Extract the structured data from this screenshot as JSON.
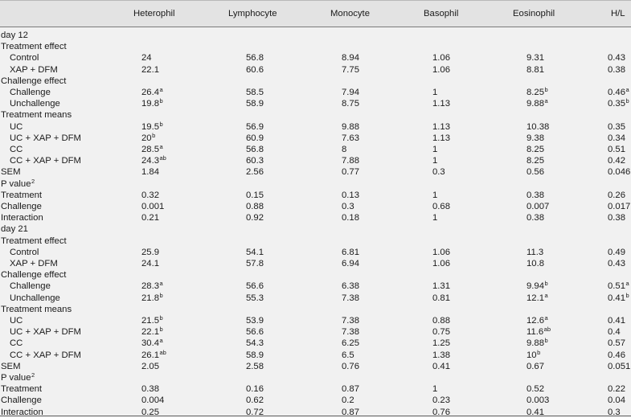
{
  "header": {
    "columns": [
      "Heterophil",
      "Lymphocyte",
      "Monocyte",
      "Basophil",
      "Eosinophil",
      "H/L"
    ]
  },
  "rows": [
    {
      "label": "day 12",
      "indent": false,
      "values": [
        null,
        null,
        null,
        null,
        null,
        null
      ]
    },
    {
      "label": "Treatment effect",
      "indent": false,
      "values": [
        null,
        null,
        null,
        null,
        null,
        null
      ]
    },
    {
      "label": "Control",
      "indent": true,
      "values": [
        {
          "v": "24"
        },
        {
          "v": "56.8"
        },
        {
          "v": "8.94"
        },
        {
          "v": "1.06"
        },
        {
          "v": "9.31"
        },
        {
          "v": "0.43"
        }
      ]
    },
    {
      "label": "XAP + DFM",
      "indent": true,
      "values": [
        {
          "v": "22.1"
        },
        {
          "v": "60.6"
        },
        {
          "v": "7.75"
        },
        {
          "v": "1.06"
        },
        {
          "v": "8.81"
        },
        {
          "v": "0.38"
        }
      ]
    },
    {
      "label": "Challenge effect",
      "indent": false,
      "values": [
        null,
        null,
        null,
        null,
        null,
        null
      ]
    },
    {
      "label": "Challenge",
      "indent": true,
      "values": [
        {
          "v": "26.4",
          "s": "a"
        },
        {
          "v": "58.5"
        },
        {
          "v": "7.94"
        },
        {
          "v": "1"
        },
        {
          "v": "8.25",
          "s": "b"
        },
        {
          "v": "0.46",
          "s": "a"
        }
      ]
    },
    {
      "label": "Unchallenge",
      "indent": true,
      "values": [
        {
          "v": "19.8",
          "s": "b"
        },
        {
          "v": "58.9"
        },
        {
          "v": "8.75"
        },
        {
          "v": "1.13"
        },
        {
          "v": "9.88",
          "s": "a"
        },
        {
          "v": "0.35",
          "s": "b"
        }
      ]
    },
    {
      "label": "Treatment means",
      "indent": false,
      "values": [
        null,
        null,
        null,
        null,
        null,
        null
      ]
    },
    {
      "label": "UC",
      "indent": true,
      "values": [
        {
          "v": "19.5",
          "s": "b"
        },
        {
          "v": "56.9"
        },
        {
          "v": "9.88"
        },
        {
          "v": "1.13"
        },
        {
          "v": "10.38"
        },
        {
          "v": "0.35"
        }
      ]
    },
    {
      "label": "UC + XAP + DFM",
      "indent": true,
      "values": [
        {
          "v": "20",
          "s": "b"
        },
        {
          "v": "60.9"
        },
        {
          "v": "7.63"
        },
        {
          "v": "1.13"
        },
        {
          "v": "9.38"
        },
        {
          "v": "0.34"
        }
      ]
    },
    {
      "label": "CC",
      "indent": true,
      "values": [
        {
          "v": "28.5",
          "s": "a"
        },
        {
          "v": "56.8"
        },
        {
          "v": "8"
        },
        {
          "v": "1"
        },
        {
          "v": "8.25"
        },
        {
          "v": "0.51"
        }
      ]
    },
    {
      "label": "CC + XAP + DFM",
      "indent": true,
      "values": [
        {
          "v": "24.3",
          "s": "ab"
        },
        {
          "v": "60.3"
        },
        {
          "v": "7.88"
        },
        {
          "v": "1"
        },
        {
          "v": "8.25"
        },
        {
          "v": "0.42"
        }
      ]
    },
    {
      "label": "SEM",
      "indent": false,
      "values": [
        {
          "v": "1.84"
        },
        {
          "v": "2.56"
        },
        {
          "v": "0.77"
        },
        {
          "v": "0.3"
        },
        {
          "v": "0.56"
        },
        {
          "v": "0.046"
        }
      ]
    },
    {
      "label": "P value",
      "label_sup": "2",
      "indent": false,
      "values": [
        null,
        null,
        null,
        null,
        null,
        null
      ]
    },
    {
      "label": "Treatment",
      "indent": false,
      "values": [
        {
          "v": "0.32"
        },
        {
          "v": "0.15"
        },
        {
          "v": "0.13"
        },
        {
          "v": "1"
        },
        {
          "v": "0.38"
        },
        {
          "v": "0.26"
        }
      ]
    },
    {
      "label": "Challenge",
      "indent": false,
      "values": [
        {
          "v": "0.001"
        },
        {
          "v": "0.88"
        },
        {
          "v": "0.3"
        },
        {
          "v": "0.68"
        },
        {
          "v": "0.007"
        },
        {
          "v": "0.017"
        }
      ]
    },
    {
      "label": "Interaction",
      "indent": false,
      "values": [
        {
          "v": "0.21"
        },
        {
          "v": "0.92"
        },
        {
          "v": "0.18"
        },
        {
          "v": "1"
        },
        {
          "v": "0.38"
        },
        {
          "v": "0.38"
        }
      ]
    },
    {
      "label": "day 21",
      "indent": false,
      "values": [
        null,
        null,
        null,
        null,
        null,
        null
      ]
    },
    {
      "label": "Treatment effect",
      "indent": false,
      "values": [
        null,
        null,
        null,
        null,
        null,
        null
      ]
    },
    {
      "label": "Control",
      "indent": true,
      "values": [
        {
          "v": "25.9"
        },
        {
          "v": "54.1"
        },
        {
          "v": "6.81"
        },
        {
          "v": "1.06"
        },
        {
          "v": "11.3"
        },
        {
          "v": "0.49"
        }
      ]
    },
    {
      "label": "XAP + DFM",
      "indent": true,
      "values": [
        {
          "v": "24.1"
        },
        {
          "v": "57.8"
        },
        {
          "v": "6.94"
        },
        {
          "v": "1.06"
        },
        {
          "v": "10.8"
        },
        {
          "v": "0.43"
        }
      ]
    },
    {
      "label": "Challenge effect",
      "indent": false,
      "values": [
        null,
        null,
        null,
        null,
        null,
        null
      ]
    },
    {
      "label": "Challenge",
      "indent": true,
      "values": [
        {
          "v": "28.3",
          "s": "a"
        },
        {
          "v": "56.6"
        },
        {
          "v": "6.38"
        },
        {
          "v": "1.31"
        },
        {
          "v": "9.94",
          "s": "b"
        },
        {
          "v": "0.51",
          "s": "a"
        }
      ]
    },
    {
      "label": "Unchallenge",
      "indent": true,
      "values": [
        {
          "v": "21.8",
          "s": "b"
        },
        {
          "v": "55.3"
        },
        {
          "v": "7.38"
        },
        {
          "v": "0.81"
        },
        {
          "v": "12.1",
          "s": "a"
        },
        {
          "v": "0.41",
          "s": "b"
        }
      ]
    },
    {
      "label": "Treatment means",
      "indent": false,
      "values": [
        null,
        null,
        null,
        null,
        null,
        null
      ]
    },
    {
      "label": "UC",
      "indent": true,
      "values": [
        {
          "v": "21.5",
          "s": "b"
        },
        {
          "v": "53.9"
        },
        {
          "v": "7.38"
        },
        {
          "v": "0.88"
        },
        {
          "v": "12.6",
          "s": "a"
        },
        {
          "v": "0.41"
        }
      ]
    },
    {
      "label": "UC + XAP + DFM",
      "indent": true,
      "values": [
        {
          "v": "22.1",
          "s": "b"
        },
        {
          "v": "56.6"
        },
        {
          "v": "7.38"
        },
        {
          "v": "0.75"
        },
        {
          "v": "11.6",
          "s": "ab"
        },
        {
          "v": "0.4"
        }
      ]
    },
    {
      "label": "CC",
      "indent": true,
      "values": [
        {
          "v": "30.4",
          "s": "a"
        },
        {
          "v": "54.3"
        },
        {
          "v": "6.25"
        },
        {
          "v": "1.25"
        },
        {
          "v": "9.88",
          "s": "b"
        },
        {
          "v": "0.57"
        }
      ]
    },
    {
      "label": "CC + XAP + DFM",
      "indent": true,
      "values": [
        {
          "v": "26.1",
          "s": "ab"
        },
        {
          "v": "58.9"
        },
        {
          "v": "6.5"
        },
        {
          "v": "1.38"
        },
        {
          "v": "10",
          "s": "b"
        },
        {
          "v": "0.46"
        }
      ]
    },
    {
      "label": "SEM",
      "indent": false,
      "values": [
        {
          "v": "2.05"
        },
        {
          "v": "2.58"
        },
        {
          "v": "0.76"
        },
        {
          "v": "0.41"
        },
        {
          "v": "0.67"
        },
        {
          "v": "0.051"
        }
      ]
    },
    {
      "label": "P value",
      "label_sup": "2",
      "indent": false,
      "values": [
        null,
        null,
        null,
        null,
        null,
        null
      ]
    },
    {
      "label": "Treatment",
      "indent": false,
      "values": [
        {
          "v": "0.38"
        },
        {
          "v": "0.16"
        },
        {
          "v": "0.87"
        },
        {
          "v": "1"
        },
        {
          "v": "0.52"
        },
        {
          "v": "0.22"
        }
      ]
    },
    {
      "label": "Challenge",
      "indent": false,
      "values": [
        {
          "v": "0.004"
        },
        {
          "v": "0.62"
        },
        {
          "v": "0.2"
        },
        {
          "v": "0.23"
        },
        {
          "v": "0.003"
        },
        {
          "v": "0.04"
        }
      ]
    },
    {
      "label": "Interaction",
      "indent": false,
      "values": [
        {
          "v": "0.25"
        },
        {
          "v": "0.72"
        },
        {
          "v": "0.87"
        },
        {
          "v": "0.76"
        },
        {
          "v": "0.41"
        },
        {
          "v": "0.3"
        }
      ]
    }
  ]
}
